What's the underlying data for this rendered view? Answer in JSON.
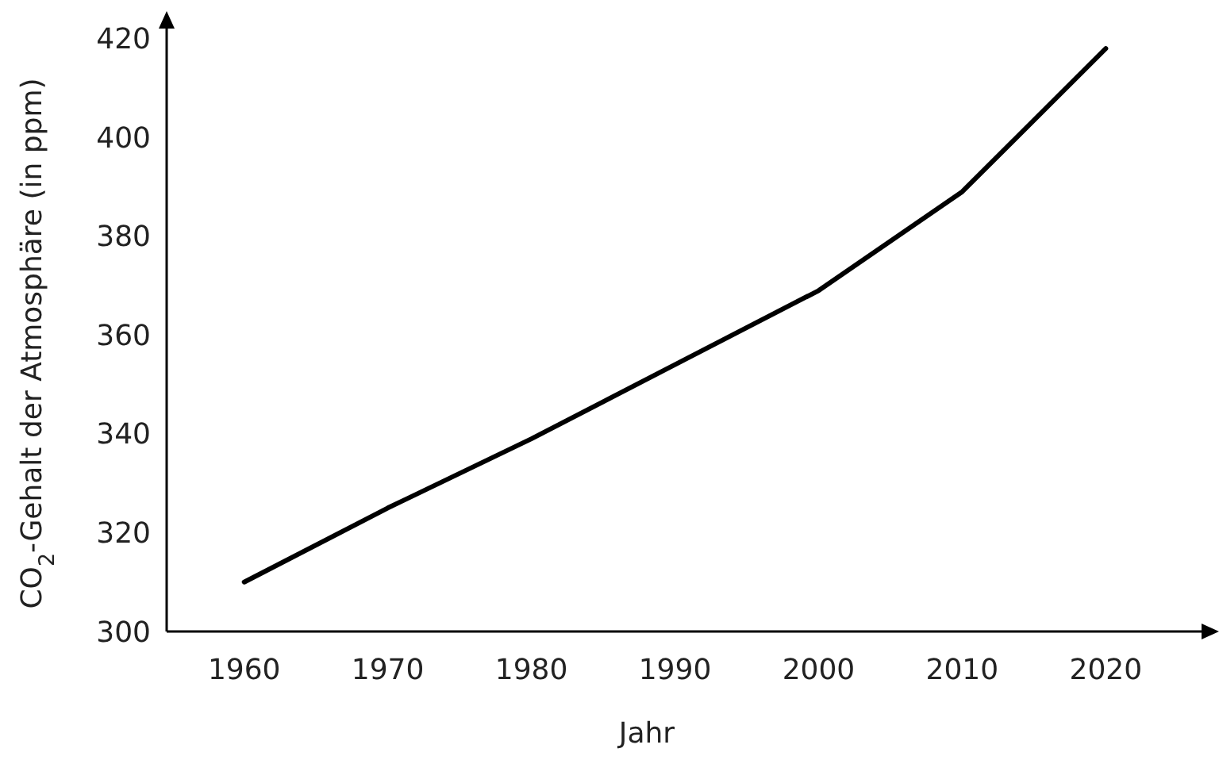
{
  "chart_data": {
    "type": "line",
    "xlabel": "Jahr",
    "ylabel": "CO$_{2}$-Gehalt der Atmosphäre (in ppm)",
    "x": [
      1960,
      1970,
      1980,
      1990,
      2000,
      2010,
      2020
    ],
    "series": [
      {
        "color": "#000000",
        "values": [
          310,
          325,
          339,
          354,
          369,
          389,
          418
        ]
      }
    ],
    "xlim": [
      1954.6,
      2027
    ],
    "ylim": [
      300,
      423
    ],
    "xticks": [
      1960,
      1970,
      1980,
      1990,
      2000,
      2010,
      2020
    ],
    "yticks": [
      300,
      320,
      340,
      360,
      380,
      400,
      420
    ],
    "grid": false,
    "marker": "none",
    "line_style": "solid"
  }
}
